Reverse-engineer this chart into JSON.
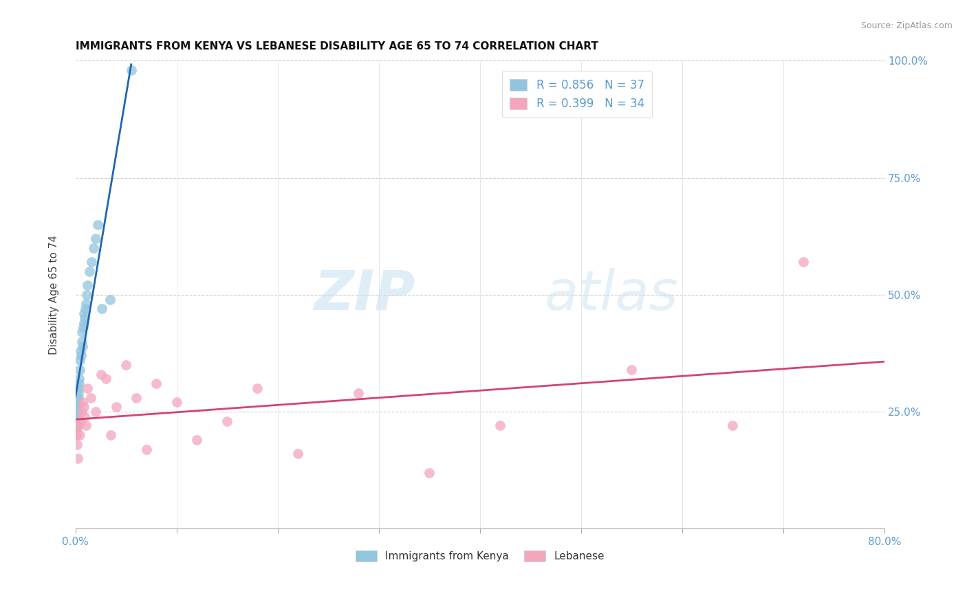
{
  "title": "IMMIGRANTS FROM KENYA VS LEBANESE DISABILITY AGE 65 TO 74 CORRELATION CHART",
  "source": "Source: ZipAtlas.com",
  "ylabel": "Disability Age 65 to 74",
  "legend_label1": "Immigrants from Kenya",
  "legend_label2": "Lebanese",
  "r1": "0.856",
  "n1": "37",
  "r2": "0.399",
  "n2": "34",
  "color_blue": "#92c5de",
  "color_pink": "#f4a6bd",
  "color_line_blue": "#2166ac",
  "color_line_pink": "#d6436e",
  "color_axis": "#5b9bd5",
  "watermark_zip": "ZIP",
  "watermark_atlas": "atlas",
  "kenya_x": [
    0.05,
    0.08,
    0.1,
    0.12,
    0.14,
    0.16,
    0.18,
    0.2,
    0.22,
    0.25,
    0.28,
    0.3,
    0.33,
    0.36,
    0.4,
    0.45,
    0.5,
    0.55,
    0.6,
    0.65,
    0.7,
    0.75,
    0.8,
    0.85,
    0.9,
    0.95,
    1.0,
    1.1,
    1.2,
    1.4,
    1.6,
    1.8,
    2.0,
    2.2,
    2.6,
    3.4,
    5.5
  ],
  "kenya_y": [
    20,
    21,
    22,
    23,
    22,
    24,
    25,
    27,
    26,
    28,
    30,
    29,
    32,
    31,
    34,
    36,
    38,
    37,
    40,
    42,
    39,
    43,
    44,
    46,
    45,
    47,
    48,
    50,
    52,
    55,
    57,
    60,
    62,
    65,
    47,
    49,
    98
  ],
  "lebanese_x": [
    0.05,
    0.1,
    0.15,
    0.2,
    0.3,
    0.4,
    0.5,
    0.6,
    0.7,
    0.8,
    0.9,
    1.0,
    1.2,
    1.5,
    2.0,
    2.5,
    3.0,
    3.5,
    4.0,
    5.0,
    6.0,
    7.0,
    8.0,
    10.0,
    12.0,
    15.0,
    18.0,
    22.0,
    28.0,
    35.0,
    42.0,
    55.0,
    65.0,
    72.0
  ],
  "lebanese_y": [
    21,
    20,
    18,
    15,
    22,
    20,
    23,
    25,
    27,
    26,
    24,
    22,
    30,
    28,
    25,
    33,
    32,
    20,
    26,
    35,
    28,
    17,
    31,
    27,
    19,
    23,
    30,
    16,
    29,
    12,
    22,
    34,
    22,
    57
  ],
  "xmin": 0.0,
  "xmax": 80.0,
  "ymin": 0.0,
  "ymax": 100.0,
  "yticks": [
    25,
    50,
    75,
    100
  ],
  "ytick_labels": [
    "25.0%",
    "50.0%",
    "75.0%",
    "100.0%"
  ],
  "xtick_labels_show": [
    "0.0%",
    "80.0%"
  ]
}
